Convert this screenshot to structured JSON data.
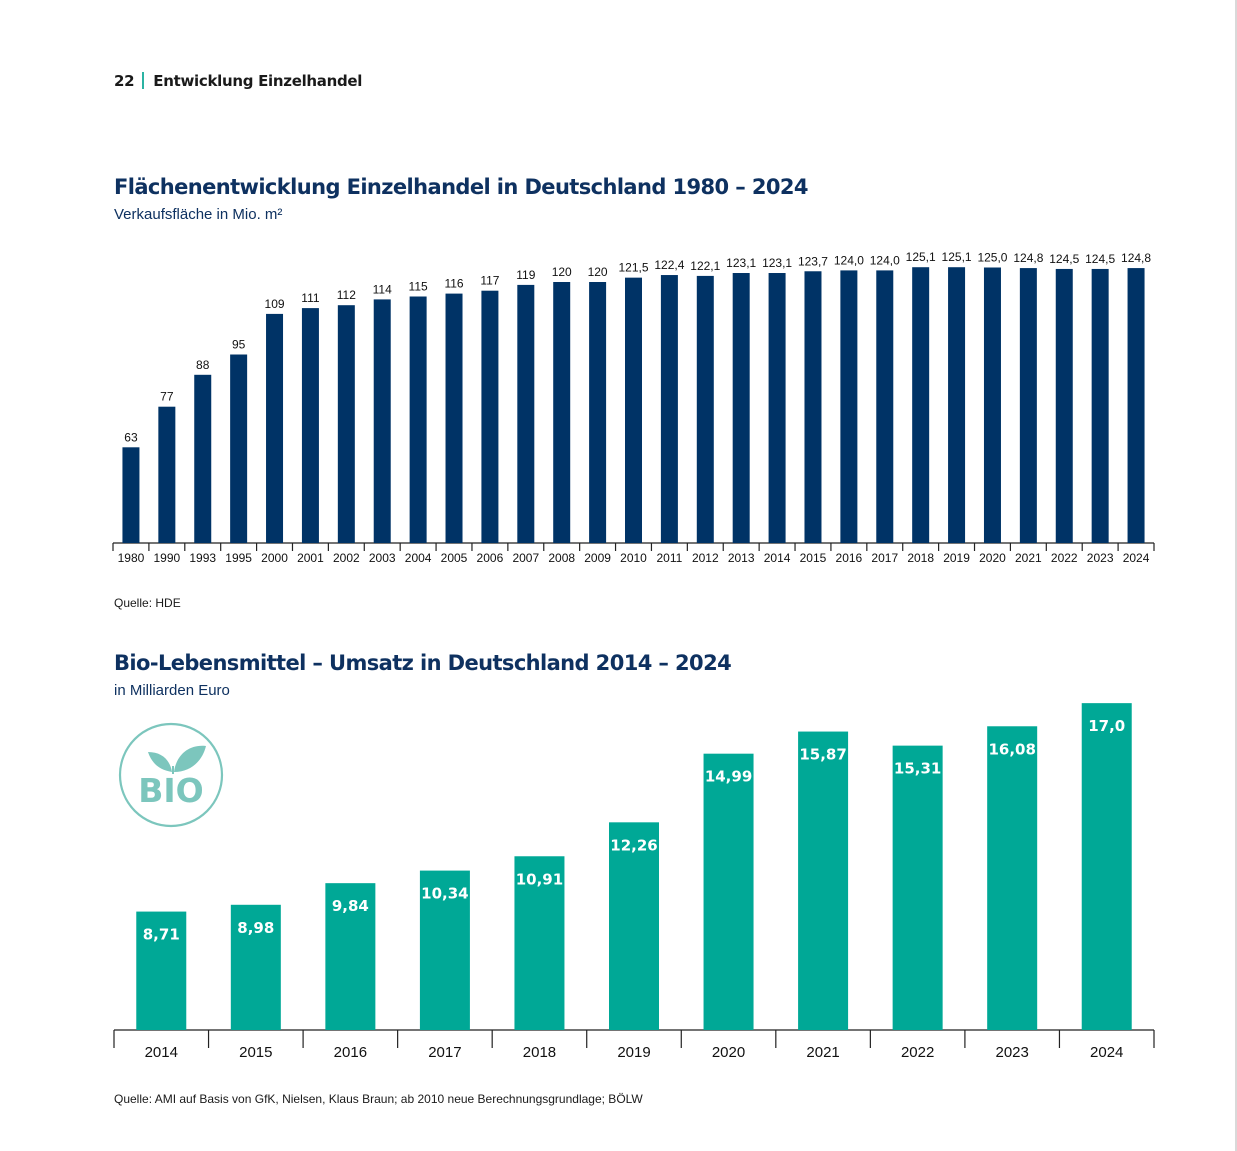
{
  "header": {
    "page_number": "22",
    "section_title": "Entwicklung Einzelhandel"
  },
  "colors": {
    "navy": "#003366",
    "teal": "#00a896",
    "logo_teal": "#7cc6bd",
    "title_blue": "#0e3160",
    "separator": "#2bb3a3"
  },
  "logo": {
    "text": "BIO",
    "icon": "leaf-sprout-icon"
  },
  "chart_data": [
    {
      "type": "bar",
      "title": "Flächenentwicklung Einzelhandel in Deutschland 1980 – 2024",
      "subtitle": "Verkaufsfläche in Mio. m²",
      "xlabel": "",
      "ylabel": "",
      "ylim": [
        30,
        130
      ],
      "grid": false,
      "source": "Quelle: HDE",
      "categories": [
        "1980",
        "1990",
        "1993",
        "1995",
        "2000",
        "2001",
        "2002",
        "2003",
        "2004",
        "2005",
        "2006",
        "2007",
        "2008",
        "2009",
        "2010",
        "2011",
        "2012",
        "2013",
        "2014",
        "2015",
        "2016",
        "2017",
        "2018",
        "2019",
        "2020",
        "2021",
        "2022",
        "2023",
        "2024"
      ],
      "values": [
        63,
        77,
        88,
        95,
        109,
        111,
        112,
        114,
        115,
        116,
        117,
        119,
        120,
        120,
        121.5,
        122.4,
        122.1,
        123.1,
        123.1,
        123.7,
        124.0,
        124.0,
        125.1,
        125.1,
        125.0,
        124.8,
        124.5,
        124.5,
        124.8
      ],
      "labels": [
        "63",
        "77",
        "88",
        "95",
        "109",
        "111",
        "112",
        "114",
        "115",
        "116",
        "117",
        "119",
        "120",
        "120",
        "121,5",
        "122,4",
        "122,1",
        "123,1",
        "123,1",
        "123,7",
        "124,0",
        "124,0",
        "125,1",
        "125,1",
        "125,0",
        "124,8",
        "124,5",
        "124,5",
        "124,8"
      ]
    },
    {
      "type": "bar",
      "title": "Bio-Lebensmittel – Umsatz in Deutschland 2014 – 2024",
      "subtitle": "in Milliarden Euro",
      "xlabel": "",
      "ylabel": "",
      "ylim": [
        4,
        18
      ],
      "grid": false,
      "source": "Quelle: AMI auf Basis von GfK, Nielsen, Klaus Braun; ab 2010 neue Berechnungsgrundlage; BÖLW",
      "categories": [
        "2014",
        "2015",
        "2016",
        "2017",
        "2018",
        "2019",
        "2020",
        "2021",
        "2022",
        "2023",
        "2024"
      ],
      "values": [
        8.71,
        8.98,
        9.84,
        10.34,
        10.91,
        12.26,
        14.99,
        15.87,
        15.31,
        16.08,
        17.0
      ],
      "labels": [
        "8,71",
        "8,98",
        "9,84",
        "10,34",
        "10,91",
        "12,26",
        "14,99",
        "15,87",
        "15,31",
        "16,08",
        "17,0"
      ]
    }
  ]
}
